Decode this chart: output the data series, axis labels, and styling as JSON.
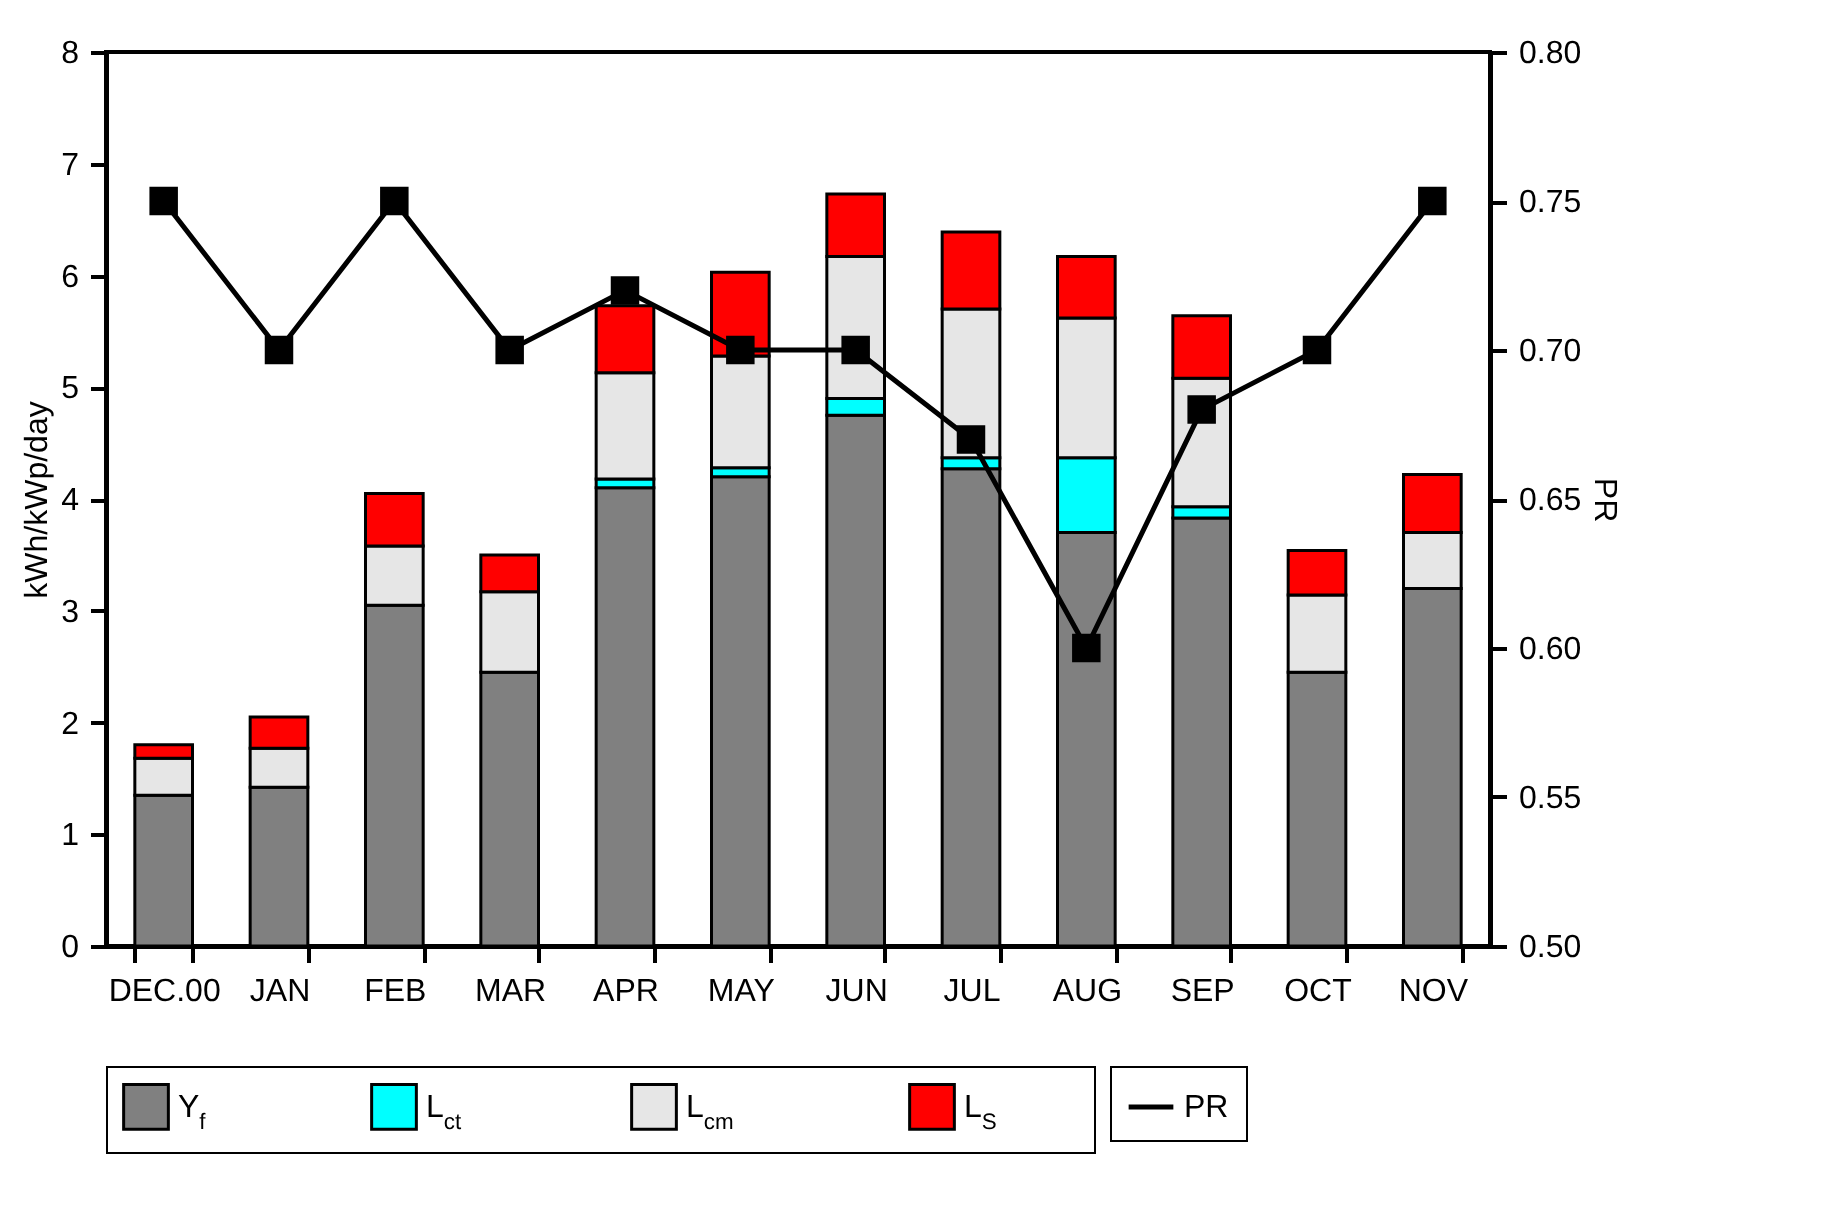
{
  "chart_data": {
    "type": "bar",
    "stacked": true,
    "ylabel": "kWh/kWp/day",
    "y2label": "PR",
    "categories": [
      "DEC.00",
      "JAN",
      "FEB",
      "MAR",
      "APR",
      "MAY",
      "JUN",
      "JUL",
      "AUG",
      "SEP",
      "OCT",
      "NOV"
    ],
    "series": [
      {
        "name": "Y$_{f}$",
        "color": "#808080",
        "values": [
          1.35,
          1.42,
          3.05,
          2.45,
          4.1,
          4.2,
          4.75,
          4.27,
          3.7,
          3.83,
          2.45,
          3.2
        ]
      },
      {
        "name": "L$_{ct}$",
        "color": "#00ffff",
        "values": [
          0,
          0,
          0,
          0,
          0.08,
          0.08,
          0.15,
          0.1,
          0.67,
          0.1,
          0,
          0
        ]
      },
      {
        "name": "L$_{cm}$",
        "color": "#e6e6e6",
        "values": [
          0.33,
          0.35,
          0.53,
          0.72,
          0.95,
          1.0,
          1.27,
          1.33,
          1.25,
          1.15,
          0.69,
          0.5
        ]
      },
      {
        "name": "L$_{S}$",
        "color": "#ff0000",
        "values": [
          0.12,
          0.28,
          0.47,
          0.33,
          0.6,
          0.75,
          0.56,
          0.69,
          0.55,
          0.56,
          0.4,
          0.52
        ]
      },
      {
        "name": "PR",
        "type": "line",
        "axis": "y2",
        "color": "#000000",
        "values": [
          0.75,
          0.7,
          0.75,
          0.7,
          0.72,
          0.7,
          0.7,
          0.67,
          0.6,
          0.68,
          0.7,
          0.75
        ]
      }
    ],
    "ylim": [
      0,
      8
    ],
    "yticks": [
      0,
      1,
      2,
      3,
      4,
      5,
      6,
      7,
      8
    ],
    "y2lim": [
      0.5,
      0.8
    ],
    "y2ticks": [
      {
        "value": 0.5,
        "label": "0.50"
      },
      {
        "value": 0.55,
        "label": "0.55"
      },
      {
        "value": 0.6,
        "label": "0.60"
      },
      {
        "value": 0.65,
        "label": "0.65"
      },
      {
        "value": 0.7,
        "label": "0.70"
      },
      {
        "value": 0.75,
        "label": "0.75"
      },
      {
        "value": 0.8,
        "label": "0.80"
      }
    ],
    "marker": "square",
    "legend": "bottom"
  }
}
